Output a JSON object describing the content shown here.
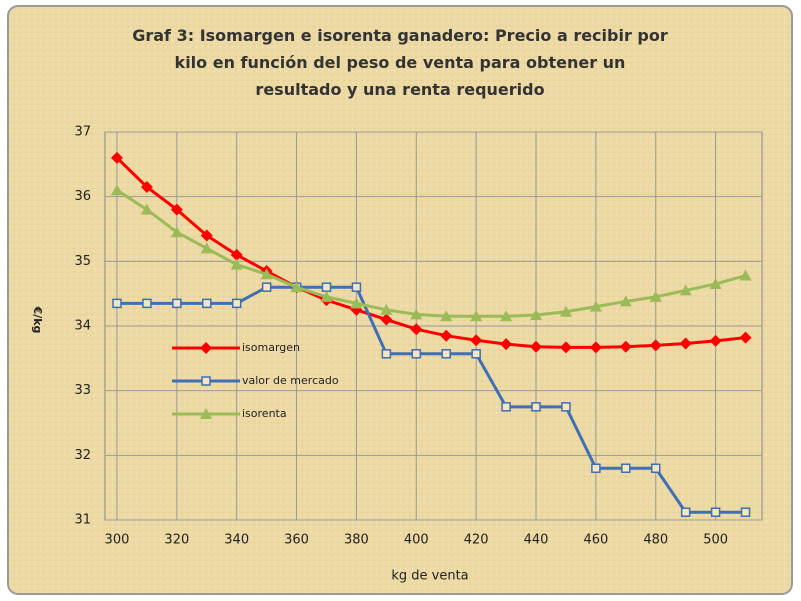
{
  "chart_data": {
    "type": "line",
    "title": "Graf 3: Isomargen e isorenta ganadero: Precio a recibir por kilo en función del peso de venta para obtener un resultado y una renta requerido",
    "x_label": "kg de venta",
    "y_label": "€/kg",
    "x": [
      300,
      310,
      320,
      330,
      340,
      350,
      360,
      370,
      380,
      390,
      400,
      410,
      420,
      430,
      440,
      450,
      460,
      470,
      480,
      490,
      500,
      510
    ],
    "series": [
      {
        "name": "isomargen",
        "color": "#ff0000",
        "marker": "diamond",
        "values": [
          36.6,
          36.15,
          35.8,
          35.4,
          35.1,
          34.85,
          34.6,
          34.4,
          34.25,
          34.1,
          33.95,
          33.85,
          33.78,
          33.72,
          33.68,
          33.67,
          33.67,
          33.68,
          33.7,
          33.73,
          33.77,
          33.82
        ]
      },
      {
        "name": "valor de mercado",
        "color": "#3f6fb5",
        "marker": "square",
        "values": [
          34.35,
          34.35,
          34.35,
          34.35,
          34.35,
          34.6,
          34.6,
          34.6,
          34.6,
          33.57,
          33.57,
          33.57,
          33.57,
          32.75,
          32.75,
          32.75,
          31.8,
          31.8,
          31.8,
          31.12,
          31.12,
          31.12
        ]
      },
      {
        "name": "isorenta",
        "color": "#9bbb59",
        "marker": "triangle",
        "values": [
          36.1,
          35.8,
          35.45,
          35.2,
          34.95,
          34.8,
          34.6,
          34.45,
          34.35,
          34.25,
          34.18,
          34.15,
          34.15,
          34.15,
          34.17,
          34.22,
          34.3,
          34.38,
          34.45,
          34.55,
          34.65,
          34.78
        ]
      }
    ],
    "xlim": [
      296,
      515.5
    ],
    "xticks": [
      300,
      320,
      340,
      360,
      380,
      400,
      420,
      440,
      460,
      480,
      500
    ],
    "ylim": [
      31,
      37
    ],
    "yticks": [
      31,
      32,
      33,
      34,
      35,
      36,
      37
    ],
    "grid": true
  }
}
